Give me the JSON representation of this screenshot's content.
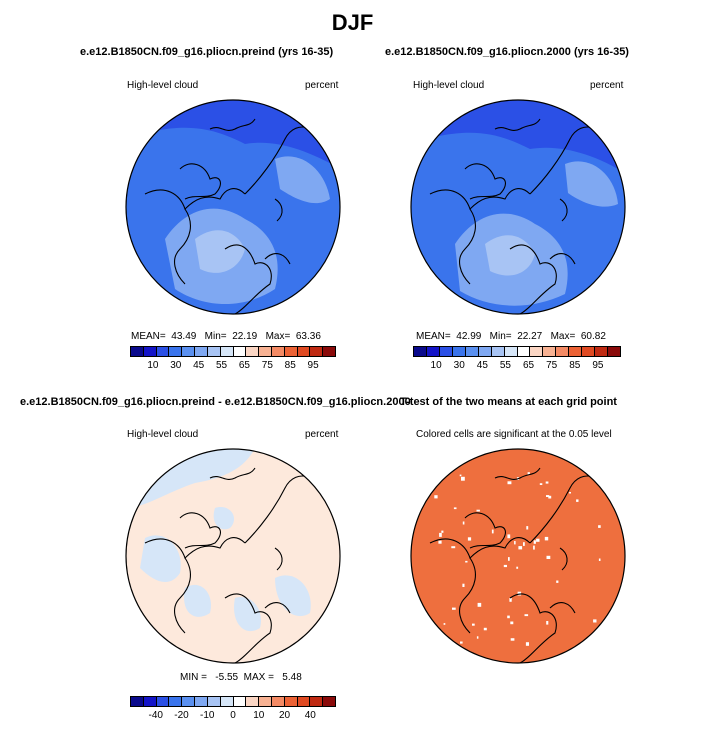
{
  "figure": {
    "title": "DJF"
  },
  "panels": {
    "top_left": {
      "title": "e.e12.B1850CN.f09_g16.pliocn.preind (yrs 16-35)",
      "left_label": "High-level cloud",
      "right_label": "percent",
      "stats": {
        "mean_label": "MEAN=",
        "mean": "43.49",
        "min_label": "Min=",
        "min": "22.19",
        "max_label": "Max=",
        "max": "63.36"
      }
    },
    "top_right": {
      "title": "e.e12.B1850CN.f09_g16.pliocn.2000 (yrs 16-35)",
      "left_label": "High-level cloud",
      "right_label": "percent",
      "stats": {
        "mean_label": "MEAN=",
        "mean": "42.99",
        "min_label": "Min=",
        "min": "22.27",
        "max_label": "Max=",
        "max": "60.82"
      }
    },
    "bottom_left": {
      "title": "e.e12.B1850CN.f09_g16.pliocn.preind - e.e12.B1850CN.f09_g16.pliocn.2000",
      "left_label": "High-level cloud",
      "right_label": "percent",
      "stats": {
        "min_label": "MIN =",
        "min": "-5.55",
        "max_label": "MAX =",
        "max": "5.48"
      }
    },
    "bottom_right": {
      "title": "T-test of the two means at each grid point",
      "subtitle": "Colored cells are significant at the 0.05 level"
    }
  },
  "colorbars": {
    "absolute": {
      "colors": [
        "#0a0a8c",
        "#1414c8",
        "#2b50e6",
        "#3a74ec",
        "#5a90f0",
        "#7fa8f2",
        "#a8c4f4",
        "#d6e6f8",
        "#ffffff",
        "#fbd6c4",
        "#f8b293",
        "#f48a64",
        "#ec6235",
        "#e04a22",
        "#c02a12",
        "#8a0a0a"
      ],
      "tick_labels": [
        "10",
        "30",
        "45",
        "55",
        "65",
        "75",
        "85",
        "95"
      ]
    },
    "difference": {
      "colors": [
        "#0a0a8c",
        "#1414c8",
        "#2b50e6",
        "#3a74ec",
        "#5a90f0",
        "#7fa8f2",
        "#a8c4f4",
        "#d6e6f8",
        "#ffffff",
        "#fbd6c4",
        "#f8b293",
        "#f48a64",
        "#ec6235",
        "#e04a22",
        "#c02a12",
        "#8a0a0a"
      ],
      "tick_labels": [
        "-40",
        "-20",
        "-10",
        "0",
        "10",
        "20",
        "40"
      ]
    }
  },
  "map_colors": {
    "top_base": "#3a74ec",
    "top_light": "#7fa8f2",
    "top_pale": "#a8c4f4",
    "top_dark": "#2b50e6",
    "diff_base": "#fde9dc",
    "diff_blue": "#d6e6f8",
    "ttest": "#ee6f3e"
  }
}
